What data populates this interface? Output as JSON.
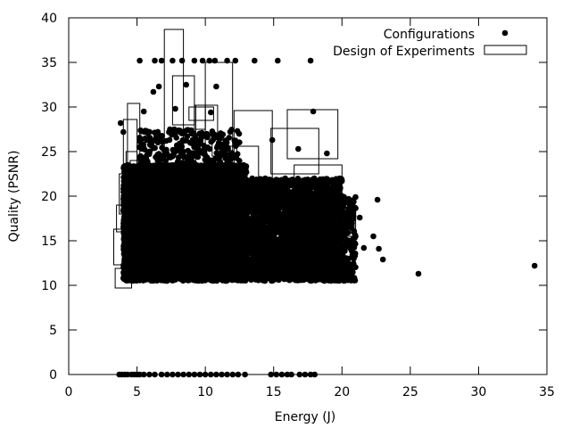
{
  "chart_data": {
    "type": "scatter",
    "xlabel": "Energy (J)",
    "ylabel": "Quality (PSNR)",
    "xlim": [
      0,
      35
    ],
    "ylim": [
      0,
      40
    ],
    "xticks": [
      0,
      5,
      10,
      15,
      20,
      25,
      30,
      35
    ],
    "yticks": [
      0,
      5,
      10,
      15,
      20,
      25,
      30,
      35,
      40
    ],
    "grid": false,
    "legend_position": "top-right",
    "series": [
      {
        "name": "Configurations",
        "marker": "filled-circle",
        "color": "#000000",
        "cloud_regions": [
          {
            "x": [
              4.0,
              13.0
            ],
            "y": [
              10.5,
              23.5
            ],
            "density": 7000
          },
          {
            "x": [
              5.0,
              12.5
            ],
            "y": [
              20.0,
              27.5
            ],
            "density": 500
          },
          {
            "x": [
              12.0,
              20.0
            ],
            "y": [
              10.5,
              22.0
            ],
            "density": 2500
          },
          {
            "x": [
              16.0,
              21.0
            ],
            "y": [
              10.5,
              20.0
            ],
            "density": 800
          }
        ],
        "points": [
          [
            5.2,
            35.2
          ],
          [
            6.3,
            35.2
          ],
          [
            6.8,
            35.2
          ],
          [
            7.6,
            35.2
          ],
          [
            8.3,
            35.2
          ],
          [
            9.2,
            35.2
          ],
          [
            9.8,
            35.2
          ],
          [
            10.3,
            35.2
          ],
          [
            10.7,
            35.2
          ],
          [
            11.6,
            35.2
          ],
          [
            12.2,
            35.2
          ],
          [
            13.6,
            35.2
          ],
          [
            15.3,
            35.2
          ],
          [
            17.7,
            35.2
          ],
          [
            6.6,
            32.3
          ],
          [
            6.2,
            31.7
          ],
          [
            8.6,
            32.5
          ],
          [
            10.8,
            32.3
          ],
          [
            5.5,
            29.5
          ],
          [
            7.8,
            29.8
          ],
          [
            10.4,
            29.4
          ],
          [
            17.9,
            29.5
          ],
          [
            4.0,
            27.2
          ],
          [
            3.8,
            28.2
          ],
          [
            14.9,
            26.3
          ],
          [
            16.8,
            25.3
          ],
          [
            18.9,
            24.8
          ],
          [
            22.6,
            19.6
          ],
          [
            22.3,
            15.5
          ],
          [
            23.0,
            12.9
          ],
          [
            22.7,
            14.1
          ],
          [
            21.3,
            17.6
          ],
          [
            21.6,
            14.2
          ],
          [
            25.6,
            11.3
          ],
          [
            34.1,
            12.2
          ],
          [
            3.7,
            0
          ],
          [
            3.9,
            0
          ],
          [
            4.1,
            0
          ],
          [
            4.3,
            0
          ],
          [
            4.6,
            0
          ],
          [
            4.8,
            0
          ],
          [
            5.0,
            0
          ],
          [
            5.2,
            0
          ],
          [
            5.5,
            0
          ],
          [
            5.9,
            0
          ],
          [
            6.3,
            0
          ],
          [
            6.8,
            0
          ],
          [
            7.2,
            0
          ],
          [
            7.6,
            0
          ],
          [
            8.0,
            0
          ],
          [
            8.4,
            0
          ],
          [
            8.8,
            0
          ],
          [
            9.2,
            0
          ],
          [
            9.6,
            0
          ],
          [
            10.0,
            0
          ],
          [
            10.4,
            0
          ],
          [
            10.8,
            0
          ],
          [
            11.2,
            0
          ],
          [
            11.6,
            0
          ],
          [
            12.0,
            0
          ],
          [
            12.4,
            0
          ],
          [
            12.9,
            0
          ],
          [
            14.8,
            0
          ],
          [
            15.2,
            0
          ],
          [
            15.6,
            0
          ],
          [
            16.0,
            0
          ],
          [
            16.3,
            0
          ],
          [
            16.9,
            0
          ],
          [
            17.3,
            0
          ],
          [
            17.7,
            0
          ],
          [
            18.0,
            0
          ]
        ]
      },
      {
        "name": "Design of Experiments",
        "marker": "box",
        "color": "#000000",
        "boxes": [
          {
            "x": [
              7.0,
              8.4
            ],
            "y": [
              23.0,
              38.7
            ]
          },
          {
            "x": [
              7.6,
              9.2
            ],
            "y": [
              28.0,
              33.5
            ]
          },
          {
            "x": [
              8.8,
              10.6
            ],
            "y": [
              28.5,
              30.0
            ]
          },
          {
            "x": [
              9.2,
              10.0
            ],
            "y": [
              27.5,
              30.2
            ]
          },
          {
            "x": [
              9.3,
              10.9
            ],
            "y": [
              19.0,
              30.2
            ]
          },
          {
            "x": [
              10.0,
              12.0
            ],
            "y": [
              23.5,
              35.0
            ]
          },
          {
            "x": [
              10.5,
              12.3
            ],
            "y": [
              24.5,
              26.5
            ]
          },
          {
            "x": [
              10.9,
              13.9
            ],
            "y": [
              21.0,
              25.6
            ]
          },
          {
            "x": [
              12.1,
              14.9
            ],
            "y": [
              22.0,
              29.6
            ]
          },
          {
            "x": [
              14.8,
              18.3
            ],
            "y": [
              22.5,
              27.6
            ]
          },
          {
            "x": [
              16.0,
              19.7
            ],
            "y": [
              24.2,
              29.7
            ]
          },
          {
            "x": [
              16.5,
              20.0
            ],
            "y": [
              17.0,
              23.5
            ]
          },
          {
            "x": [
              17.0,
              20.9
            ],
            "y": [
              16.0,
              19.5
            ]
          },
          {
            "x": [
              17.5,
              21.0
            ],
            "y": [
              15.5,
              18.8
            ]
          },
          {
            "x": [
              4.3,
              5.2
            ],
            "y": [
              22.0,
              30.4
            ]
          },
          {
            "x": [
              4.0,
              5.0
            ],
            "y": [
              20.5,
              28.6
            ]
          },
          {
            "x": [
              4.5,
              5.5
            ],
            "y": [
              19.0,
              24.0
            ]
          },
          {
            "x": [
              3.7,
              5.0
            ],
            "y": [
              18.0,
              22.5
            ]
          },
          {
            "x": [
              3.5,
              4.7
            ],
            "y": [
              16.0,
              19.0
            ]
          },
          {
            "x": [
              3.3,
              4.5
            ],
            "y": [
              12.3,
              16.3
            ]
          },
          {
            "x": [
              3.4,
              4.6
            ],
            "y": [
              9.7,
              11.9
            ]
          },
          {
            "x": [
              4.5,
              5.9
            ],
            "y": [
              10.5,
              18.0
            ]
          },
          {
            "x": [
              5.5,
              7.3
            ],
            "y": [
              11.0,
              17.0
            ]
          },
          {
            "x": [
              6.5,
              8.5
            ],
            "y": [
              11.5,
              20.0
            ]
          },
          {
            "x": [
              9.0,
              11.5
            ],
            "y": [
              12.0,
              20.0
            ]
          },
          {
            "x": [
              12.0,
              14.6
            ],
            "y": [
              11.0,
              18.0
            ]
          },
          {
            "x": [
              14.0,
              16.5
            ],
            "y": [
              11.5,
              17.5
            ]
          },
          {
            "x": [
              4.2,
              5.0
            ],
            "y": [
              20.0,
              25.0
            ]
          }
        ]
      }
    ]
  }
}
